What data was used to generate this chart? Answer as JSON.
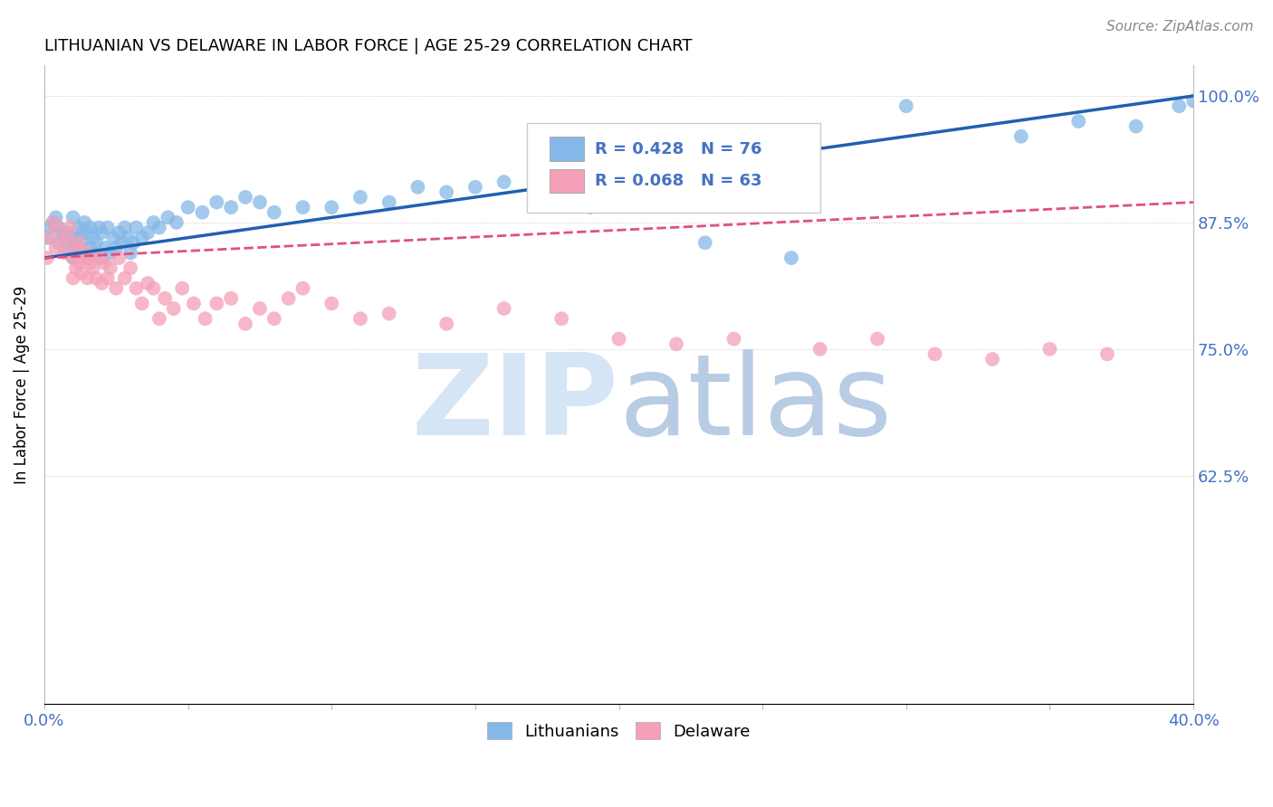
{
  "title": "LITHUANIAN VS DELAWARE IN LABOR FORCE | AGE 25-29 CORRELATION CHART",
  "source": "Source: ZipAtlas.com",
  "ylabel": "In Labor Force | Age 25-29",
  "xlim": [
    0.0,
    0.4
  ],
  "ylim": [
    0.4,
    1.03
  ],
  "xticks": [
    0.0,
    0.05,
    0.1,
    0.15,
    0.2,
    0.25,
    0.3,
    0.35,
    0.4
  ],
  "ytick_positions": [
    0.625,
    0.75,
    0.875,
    1.0
  ],
  "ytick_labels": [
    "62.5%",
    "75.0%",
    "87.5%",
    "100.0%"
  ],
  "blue_R": 0.428,
  "blue_N": 76,
  "pink_R": 0.068,
  "pink_N": 63,
  "blue_color": "#85b8e8",
  "pink_color": "#f4a0b8",
  "blue_line_color": "#2060b0",
  "pink_line_color": "#e05080",
  "watermark_color": "#dce8f5",
  "legend_label_blue": "Lithuanians",
  "legend_label_pink": "Delaware",
  "blue_points_x": [
    0.001,
    0.002,
    0.003,
    0.004,
    0.005,
    0.005,
    0.006,
    0.007,
    0.008,
    0.008,
    0.009,
    0.01,
    0.01,
    0.01,
    0.011,
    0.011,
    0.012,
    0.012,
    0.013,
    0.013,
    0.014,
    0.014,
    0.015,
    0.015,
    0.016,
    0.016,
    0.017,
    0.017,
    0.018,
    0.019,
    0.02,
    0.02,
    0.021,
    0.022,
    0.023,
    0.024,
    0.025,
    0.026,
    0.027,
    0.028,
    0.029,
    0.03,
    0.031,
    0.032,
    0.034,
    0.036,
    0.038,
    0.04,
    0.043,
    0.046,
    0.05,
    0.055,
    0.06,
    0.065,
    0.07,
    0.075,
    0.08,
    0.09,
    0.1,
    0.11,
    0.12,
    0.13,
    0.14,
    0.15,
    0.16,
    0.175,
    0.19,
    0.21,
    0.23,
    0.26,
    0.3,
    0.34,
    0.36,
    0.38,
    0.395,
    0.4
  ],
  "blue_points_y": [
    0.86,
    0.87,
    0.875,
    0.88,
    0.855,
    0.87,
    0.865,
    0.86,
    0.85,
    0.865,
    0.86,
    0.855,
    0.84,
    0.88,
    0.845,
    0.86,
    0.85,
    0.87,
    0.855,
    0.865,
    0.845,
    0.875,
    0.84,
    0.865,
    0.85,
    0.87,
    0.845,
    0.86,
    0.855,
    0.87,
    0.84,
    0.865,
    0.85,
    0.87,
    0.845,
    0.86,
    0.85,
    0.865,
    0.855,
    0.87,
    0.86,
    0.845,
    0.855,
    0.87,
    0.86,
    0.865,
    0.875,
    0.87,
    0.88,
    0.875,
    0.89,
    0.885,
    0.895,
    0.89,
    0.9,
    0.895,
    0.885,
    0.89,
    0.89,
    0.9,
    0.895,
    0.91,
    0.905,
    0.91,
    0.915,
    0.92,
    0.89,
    0.93,
    0.855,
    0.84,
    0.99,
    0.96,
    0.975,
    0.97,
    0.99,
    0.995
  ],
  "pink_points_x": [
    0.001,
    0.002,
    0.003,
    0.004,
    0.005,
    0.006,
    0.007,
    0.008,
    0.009,
    0.01,
    0.01,
    0.011,
    0.011,
    0.012,
    0.012,
    0.013,
    0.014,
    0.015,
    0.015,
    0.016,
    0.017,
    0.018,
    0.019,
    0.02,
    0.021,
    0.022,
    0.023,
    0.025,
    0.026,
    0.028,
    0.03,
    0.032,
    0.034,
    0.036,
    0.038,
    0.04,
    0.042,
    0.045,
    0.048,
    0.052,
    0.056,
    0.06,
    0.065,
    0.07,
    0.075,
    0.08,
    0.085,
    0.09,
    0.1,
    0.11,
    0.12,
    0.14,
    0.16,
    0.18,
    0.2,
    0.22,
    0.24,
    0.27,
    0.29,
    0.31,
    0.33,
    0.35,
    0.37
  ],
  "pink_points_y": [
    0.84,
    0.86,
    0.875,
    0.85,
    0.87,
    0.855,
    0.845,
    0.86,
    0.87,
    0.84,
    0.82,
    0.83,
    0.85,
    0.835,
    0.855,
    0.825,
    0.84,
    0.82,
    0.845,
    0.835,
    0.83,
    0.82,
    0.84,
    0.815,
    0.835,
    0.82,
    0.83,
    0.81,
    0.84,
    0.82,
    0.83,
    0.81,
    0.795,
    0.815,
    0.81,
    0.78,
    0.8,
    0.79,
    0.81,
    0.795,
    0.78,
    0.795,
    0.8,
    0.775,
    0.79,
    0.78,
    0.8,
    0.81,
    0.795,
    0.78,
    0.785,
    0.775,
    0.79,
    0.78,
    0.76,
    0.755,
    0.76,
    0.75,
    0.76,
    0.745,
    0.74,
    0.75,
    0.745
  ]
}
